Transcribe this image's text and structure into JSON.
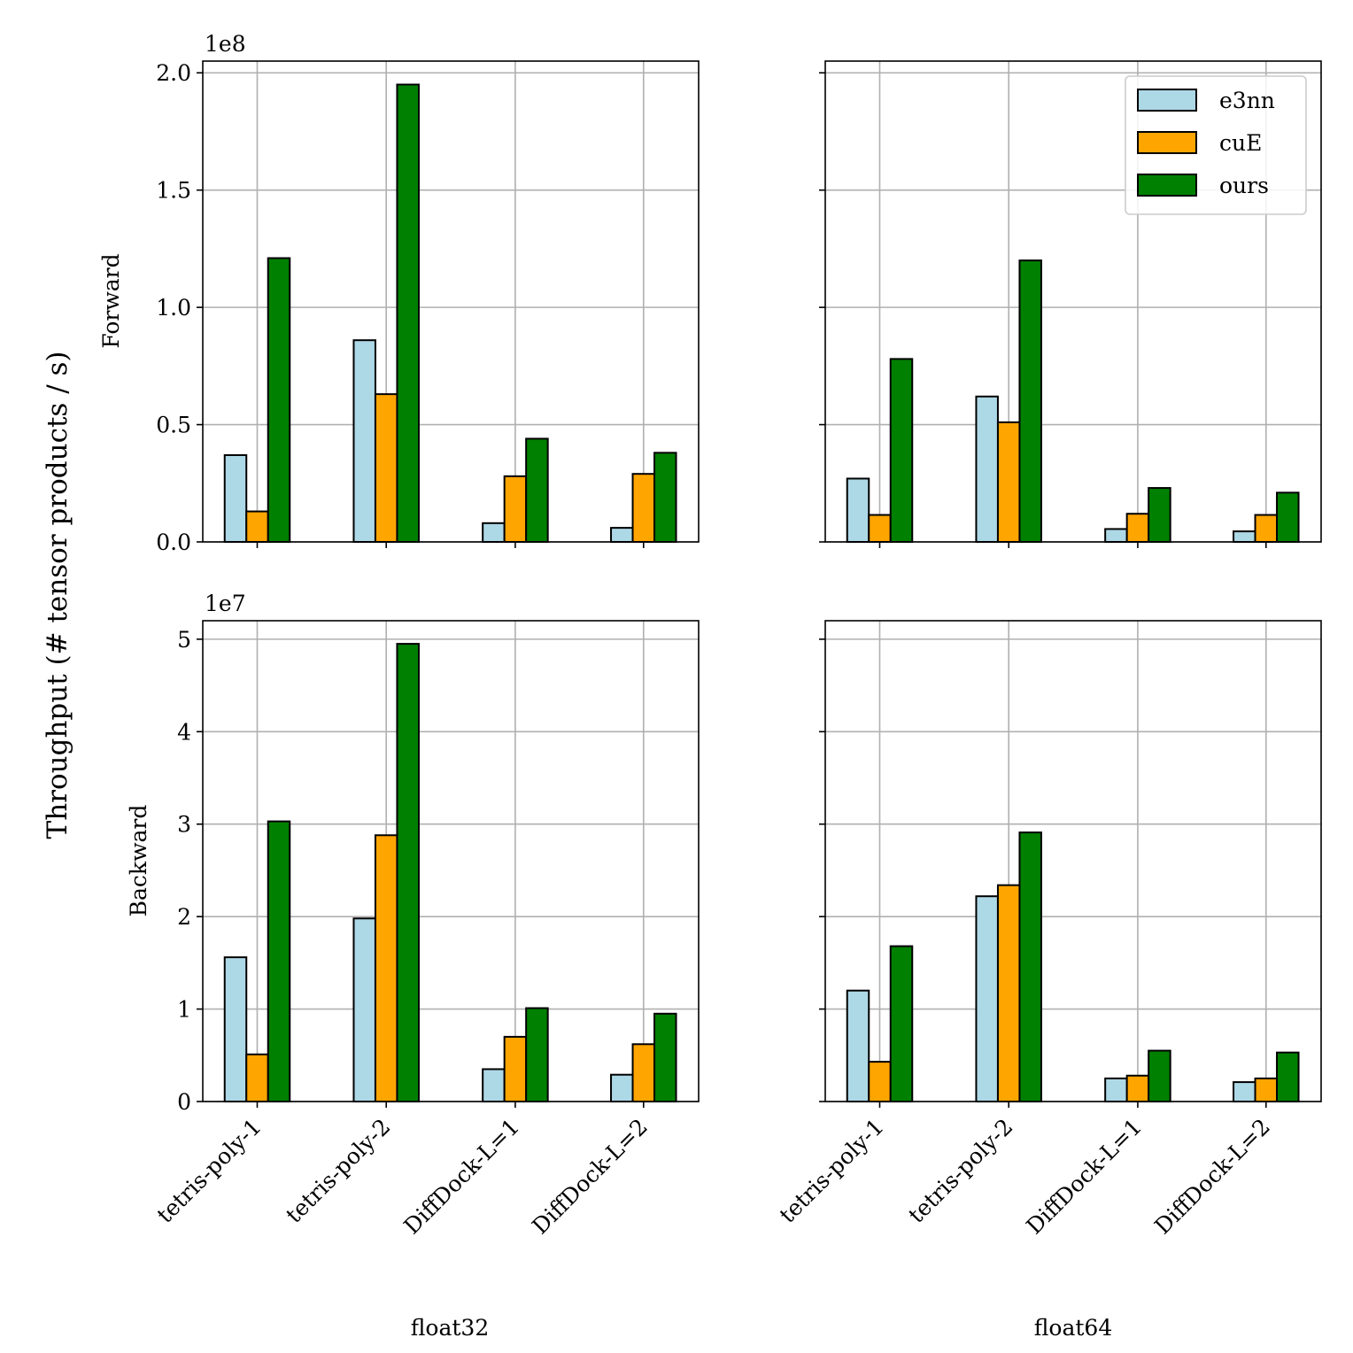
{
  "chart_data": {
    "type": "bar",
    "ylabel": "Throughput (# tensor products / s)",
    "categories": [
      "tetris-poly-1",
      "tetris-poly-2",
      "DiffDock-L=1",
      "DiffDock-L=2"
    ],
    "legend": {
      "placement": "top-right",
      "entries": [
        "e3nn",
        "cuE",
        "ours"
      ]
    },
    "colors": {
      "e3nn": "#add8e6",
      "cuE": "#ffa500",
      "ours": "#008000"
    },
    "grid": true,
    "panels": [
      {
        "row": "Forward",
        "column": "float32",
        "multiplier": "1e8",
        "scale": 100000000,
        "ylim": [
          0,
          2.05
        ],
        "yticks": [
          "0.0",
          "0.5",
          "1.0",
          "1.5",
          "2.0"
        ],
        "ytick_values": [
          0,
          0.5,
          1.0,
          1.5,
          2.0
        ],
        "show_yticklabels": true,
        "show_xticklabels": false,
        "xlabel": "",
        "series": [
          {
            "name": "e3nn",
            "values": [
              0.37,
              0.86,
              0.08,
              0.06
            ]
          },
          {
            "name": "cuE",
            "values": [
              0.13,
              0.63,
              0.28,
              0.29
            ]
          },
          {
            "name": "ours",
            "values": [
              1.21,
              1.95,
              0.44,
              0.38
            ]
          }
        ]
      },
      {
        "row": "Forward",
        "column": "float64",
        "multiplier": "",
        "scale": 100000000,
        "ylim": [
          0,
          2.05
        ],
        "yticks": [
          "0.0",
          "0.5",
          "1.0",
          "1.5",
          "2.0"
        ],
        "ytick_values": [
          0,
          0.5,
          1.0,
          1.5,
          2.0
        ],
        "show_yticklabels": false,
        "show_xticklabels": false,
        "xlabel": "",
        "show_legend": true,
        "series": [
          {
            "name": "e3nn",
            "values": [
              0.27,
              0.62,
              0.055,
              0.045
            ]
          },
          {
            "name": "cuE",
            "values": [
              0.115,
              0.51,
              0.12,
              0.115
            ]
          },
          {
            "name": "ours",
            "values": [
              0.78,
              1.2,
              0.23,
              0.21
            ]
          }
        ]
      },
      {
        "row": "Backward",
        "column": "float32",
        "multiplier": "1e7",
        "scale": 10000000,
        "ylim": [
          0,
          5.2
        ],
        "yticks": [
          "0",
          "1",
          "2",
          "3",
          "4",
          "5"
        ],
        "ytick_values": [
          0,
          1,
          2,
          3,
          4,
          5
        ],
        "show_yticklabels": true,
        "show_xticklabels": true,
        "xlabel": "float32",
        "series": [
          {
            "name": "e3nn",
            "values": [
              1.56,
              1.98,
              0.35,
              0.29
            ]
          },
          {
            "name": "cuE",
            "values": [
              0.51,
              2.88,
              0.7,
              0.62
            ]
          },
          {
            "name": "ours",
            "values": [
              3.03,
              4.95,
              1.01,
              0.95
            ]
          }
        ]
      },
      {
        "row": "Backward",
        "column": "float64",
        "multiplier": "",
        "scale": 10000000,
        "ylim": [
          0,
          5.2
        ],
        "yticks": [
          "0",
          "1",
          "2",
          "3",
          "4",
          "5"
        ],
        "ytick_values": [
          0,
          1,
          2,
          3,
          4,
          5
        ],
        "show_yticklabels": false,
        "show_xticklabels": true,
        "xlabel": "float64",
        "series": [
          {
            "name": "e3nn",
            "values": [
              1.2,
              2.22,
              0.25,
              0.21
            ]
          },
          {
            "name": "cuE",
            "values": [
              0.43,
              2.34,
              0.28,
              0.25
            ]
          },
          {
            "name": "ours",
            "values": [
              1.68,
              2.91,
              0.55,
              0.53
            ]
          }
        ]
      }
    ]
  }
}
